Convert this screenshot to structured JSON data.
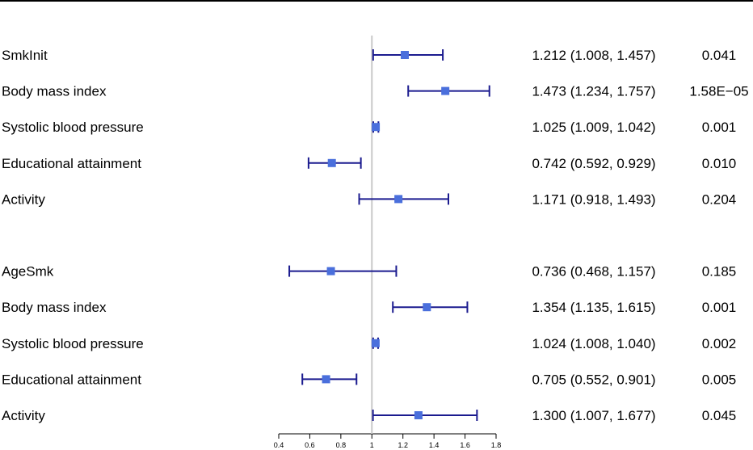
{
  "chart_data": {
    "type": "forest",
    "title": "",
    "xlabel": "",
    "ylabel": "",
    "xlim": [
      0.4,
      1.8
    ],
    "xticks": [
      0.4,
      0.6,
      0.8,
      1,
      1.2,
      1.4,
      1.6,
      1.8
    ],
    "reference_line": 1,
    "point_color": "#4a6fdc",
    "line_color": "#1b1b8f",
    "groups": [
      {
        "rows": [
          {
            "label": "SmkInit",
            "or": 1.212,
            "lower": 1.008,
            "upper": 1.457,
            "ci_text": "1.212 (1.008, 1.457)",
            "p": "0.041"
          },
          {
            "label": "Body mass index",
            "or": 1.473,
            "lower": 1.234,
            "upper": 1.757,
            "ci_text": "1.473 (1.234, 1.757)",
            "p": "1.58E−05"
          },
          {
            "label": "Systolic blood pressure",
            "or": 1.025,
            "lower": 1.009,
            "upper": 1.042,
            "ci_text": "1.025 (1.009, 1.042)",
            "p": "0.001"
          },
          {
            "label": "Educational attainment",
            "or": 0.742,
            "lower": 0.592,
            "upper": 0.929,
            "ci_text": "0.742 (0.592, 0.929)",
            "p": "0.010"
          },
          {
            "label": "Activity",
            "or": 1.171,
            "lower": 0.918,
            "upper": 1.493,
            "ci_text": "1.171 (0.918, 1.493)",
            "p": "0.204"
          }
        ]
      },
      {
        "rows": [
          {
            "label": "AgeSmk",
            "or": 0.736,
            "lower": 0.468,
            "upper": 1.157,
            "ci_text": "0.736 (0.468, 1.157)",
            "p": "0.185"
          },
          {
            "label": "Body mass index",
            "or": 1.354,
            "lower": 1.135,
            "upper": 1.615,
            "ci_text": "1.354 (1.135, 1.615)",
            "p": "0.001"
          },
          {
            "label": "Systolic blood pressure",
            "or": 1.024,
            "lower": 1.008,
            "upper": 1.04,
            "ci_text": "1.024 (1.008, 1.040)",
            "p": "0.002"
          },
          {
            "label": "Educational attainment",
            "or": 0.705,
            "lower": 0.552,
            "upper": 0.901,
            "ci_text": "0.705 (0.552, 0.901)",
            "p": "0.005"
          },
          {
            "label": "Activity",
            "or": 1.3,
            "lower": 1.007,
            "upper": 1.677,
            "ci_text": "1.300 (1.007, 1.677)",
            "p": "0.045"
          }
        ]
      }
    ]
  }
}
